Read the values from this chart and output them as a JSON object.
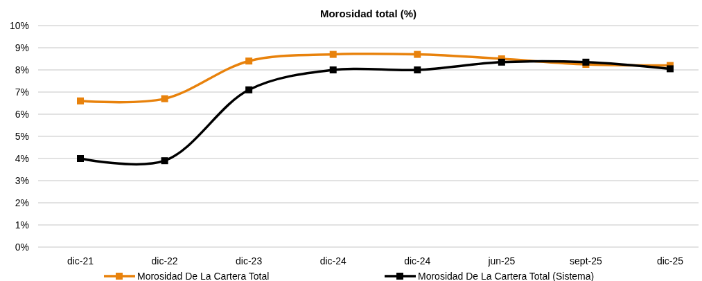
{
  "chart_data": {
    "type": "line",
    "title": "Morosidad total (%)",
    "categories": [
      "dic-21",
      "dic-22",
      "dic-23",
      "dic-24",
      "dic-24",
      "jun-25",
      "sept-25",
      "dic-25"
    ],
    "series": [
      {
        "name": "Morosidad De La Cartera Total",
        "color": "#e8820c",
        "values": [
          6.6,
          6.7,
          8.4,
          8.7,
          8.7,
          8.5,
          8.25,
          8.2
        ]
      },
      {
        "name": "Morosidad De La Cartera Total (Sistema)",
        "color": "#000000",
        "values": [
          4.0,
          3.9,
          7.1,
          8.0,
          8.0,
          8.35,
          8.35,
          8.05
        ]
      }
    ],
    "ylim": [
      0,
      10
    ],
    "yticks": [
      {
        "value": 0,
        "label": "0%"
      },
      {
        "value": 1,
        "label": "1%"
      },
      {
        "value": 2,
        "label": "2%"
      },
      {
        "value": 3,
        "label": "3%"
      },
      {
        "value": 4,
        "label": "4%"
      },
      {
        "value": 5,
        "label": "5%"
      },
      {
        "value": 6,
        "label": "6%"
      },
      {
        "value": 7,
        "label": "7%"
      },
      {
        "value": 8,
        "label": "8%"
      },
      {
        "value": 9,
        "label": "9%"
      },
      {
        "value": 10,
        "label": "10%"
      }
    ],
    "grid": "y",
    "legend": "bottom",
    "marker": "square",
    "line_style": "solid"
  }
}
